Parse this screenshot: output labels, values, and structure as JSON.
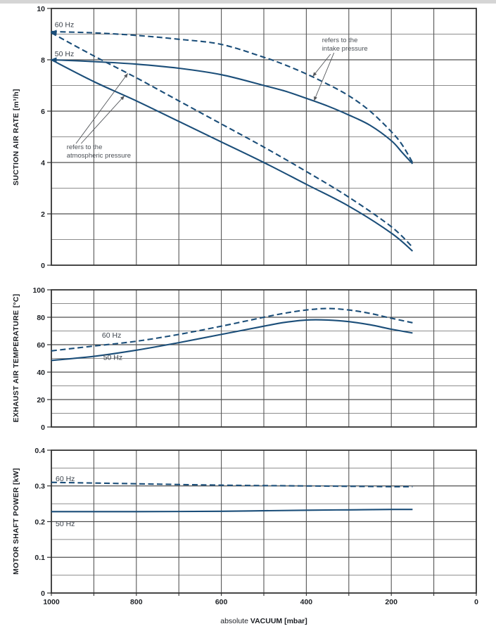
{
  "style": {
    "curve_color": "#1b4e79",
    "annotation_color": "#54575b",
    "grid_major_color": "#4f4f4f",
    "grid_minor_color": "#8d8d8d",
    "frame_color": "#333333",
    "top_strip_color": "#d5d5d5"
  },
  "x_axis": {
    "title_prefix": "absolute",
    "title_main": "VACUUM [mbar]",
    "min": 0,
    "max": 1000,
    "minor_step": 100,
    "direction": "reversed",
    "ticks": [
      {
        "value": 1000,
        "label": "1000"
      },
      {
        "value": 800,
        "label": "800"
      },
      {
        "value": 600,
        "label": "600"
      },
      {
        "value": 400,
        "label": "400"
      },
      {
        "value": 200,
        "label": "200"
      },
      {
        "value": 0,
        "label": "0"
      }
    ]
  },
  "chart_data": [
    {
      "id": "suction-air-rate",
      "type": "line",
      "y_axis": {
        "title": "SUCTION AIR RATE [m³/h]",
        "min": 0,
        "max": 10,
        "major_step": 2,
        "minor_step": 1,
        "ticks": [
          {
            "value": 0,
            "label": "0"
          },
          {
            "value": 2,
            "label": "2"
          },
          {
            "value": 4,
            "label": "4"
          },
          {
            "value": 6,
            "label": "6"
          },
          {
            "value": 8,
            "label": "8"
          },
          {
            "value": 10,
            "label": "10"
          }
        ]
      },
      "series": [
        {
          "id": "60hz-intake-pressure",
          "freq": "60 Hz",
          "refers_to": "intake pressure",
          "style": "dashed",
          "x": [
            1000,
            900,
            800,
            700,
            600,
            500,
            450,
            400,
            350,
            300,
            250,
            200,
            175,
            150
          ],
          "y": [
            9.1,
            9.05,
            8.95,
            8.8,
            8.6,
            8.1,
            7.8,
            7.45,
            7.05,
            6.6,
            6.0,
            5.2,
            4.7,
            4.0
          ]
        },
        {
          "id": "50hz-intake-pressure",
          "freq": "50 Hz",
          "refers_to": "intake pressure",
          "style": "solid",
          "x": [
            1000,
            900,
            800,
            700,
            600,
            500,
            450,
            400,
            350,
            300,
            250,
            200,
            175,
            150
          ],
          "y": [
            8.0,
            7.93,
            7.83,
            7.67,
            7.42,
            7.0,
            6.78,
            6.5,
            6.2,
            5.85,
            5.45,
            4.85,
            4.4,
            3.95
          ]
        },
        {
          "id": "60hz-atmospheric-pressure",
          "freq": "60 Hz",
          "refers_to": "atmospheric pressure",
          "style": "dashed",
          "x": [
            1000,
            900,
            800,
            700,
            600,
            500,
            400,
            300,
            200,
            150
          ],
          "y": [
            9.05,
            8.15,
            7.3,
            6.4,
            5.5,
            4.6,
            3.65,
            2.65,
            1.5,
            0.7
          ]
        },
        {
          "id": "50hz-atmospheric-pressure",
          "freq": "50 Hz",
          "refers_to": "atmospheric pressure",
          "style": "solid",
          "x": [
            1000,
            900,
            800,
            700,
            600,
            500,
            400,
            300,
            200,
            150
          ],
          "y": [
            8.0,
            7.15,
            6.4,
            5.6,
            4.8,
            4.0,
            3.15,
            2.3,
            1.25,
            0.55
          ]
        }
      ],
      "labels": [
        {
          "text": "60 Hz",
          "x": 992,
          "y": 9.27
        },
        {
          "text": "50 Hz",
          "x": 992,
          "y": 8.14
        }
      ],
      "start_markers": [
        {
          "x": 1000,
          "y": 9.07
        },
        {
          "x": 1000,
          "y": 8.0
        }
      ],
      "annotations": [
        {
          "lines": [
            "refers to the",
            "intake pressure"
          ],
          "x": 363,
          "y": 8.68,
          "arrows": [
            {
              "from": [
                343,
                8.22
              ],
              "to": [
                385,
                7.35
              ]
            },
            {
              "from": [
                335,
                8.27
              ],
              "to": [
                382,
                6.4
              ]
            }
          ]
        },
        {
          "lines": [
            "refers to the",
            "atmospheric pressure"
          ],
          "x": 964,
          "y": 4.52,
          "arrows": [
            {
              "from": [
                942,
                4.74
              ],
              "to": [
                820,
                7.47
              ]
            },
            {
              "from": [
                930,
                4.74
              ],
              "to": [
                828,
                6.6
              ]
            }
          ]
        }
      ]
    },
    {
      "id": "exhaust-air-temperature",
      "type": "line",
      "y_axis": {
        "title": "EXHAUST AIR TEMPERATURE [°C]",
        "min": 0,
        "max": 100,
        "major_step": 20,
        "minor_step": 10,
        "ticks": [
          {
            "value": 0,
            "label": "0"
          },
          {
            "value": 20,
            "label": "20"
          },
          {
            "value": 40,
            "label": "40"
          },
          {
            "value": 60,
            "label": "60"
          },
          {
            "value": 80,
            "label": "80"
          },
          {
            "value": 100,
            "label": "100"
          }
        ]
      },
      "series": [
        {
          "id": "60hz",
          "freq": "60 Hz",
          "style": "dashed",
          "x": [
            1000,
            900,
            800,
            700,
            600,
            500,
            450,
            400,
            350,
            300,
            250,
            200,
            150
          ],
          "y": [
            55.5,
            59,
            62.5,
            67.5,
            73.5,
            80,
            83,
            85.3,
            86.4,
            85.3,
            82.8,
            79.3,
            76
          ]
        },
        {
          "id": "50hz",
          "freq": "50 Hz",
          "style": "solid",
          "x": [
            1000,
            900,
            800,
            700,
            600,
            500,
            450,
            400,
            350,
            300,
            250,
            200,
            150
          ],
          "y": [
            48.5,
            51.5,
            56,
            61.5,
            67.5,
            73.5,
            76.3,
            78,
            78,
            76.8,
            74.5,
            71.3,
            68.5
          ]
        }
      ],
      "labels": [
        {
          "text": "60 Hz",
          "x": 881,
          "y": 65.2
        },
        {
          "text": "50 Hz",
          "x": 878,
          "y": 49.0
        }
      ],
      "start_markers": [],
      "annotations": []
    },
    {
      "id": "motor-shaft-power",
      "type": "line",
      "y_axis": {
        "title": "MOTOR SHAFT POWER [kW]",
        "min": 0,
        "max": 0.4,
        "major_step": 0.1,
        "minor_step": 0.05,
        "ticks": [
          {
            "value": 0,
            "label": "0"
          },
          {
            "value": 0.1,
            "label": "0.1"
          },
          {
            "value": 0.2,
            "label": "0.2"
          },
          {
            "value": 0.3,
            "label": "0.3"
          },
          {
            "value": 0.4,
            "label": "0.4"
          }
        ]
      },
      "series": [
        {
          "id": "60hz",
          "freq": "60 Hz",
          "style": "dashed",
          "x": [
            1000,
            800,
            600,
            400,
            300,
            200,
            150
          ],
          "y": [
            0.31,
            0.306,
            0.302,
            0.3,
            0.299,
            0.298,
            0.298
          ]
        },
        {
          "id": "50hz",
          "freq": "50 Hz",
          "style": "solid",
          "x": [
            1000,
            800,
            600,
            400,
            300,
            200,
            150
          ],
          "y": [
            0.228,
            0.228,
            0.229,
            0.232,
            0.233,
            0.234,
            0.234
          ]
        }
      ],
      "labels": [
        {
          "text": "60 Hz",
          "x": 990,
          "y": 0.313
        },
        {
          "text": "50 Hz",
          "x": 990,
          "y": 0.187
        }
      ],
      "start_markers": [],
      "annotations": []
    }
  ]
}
